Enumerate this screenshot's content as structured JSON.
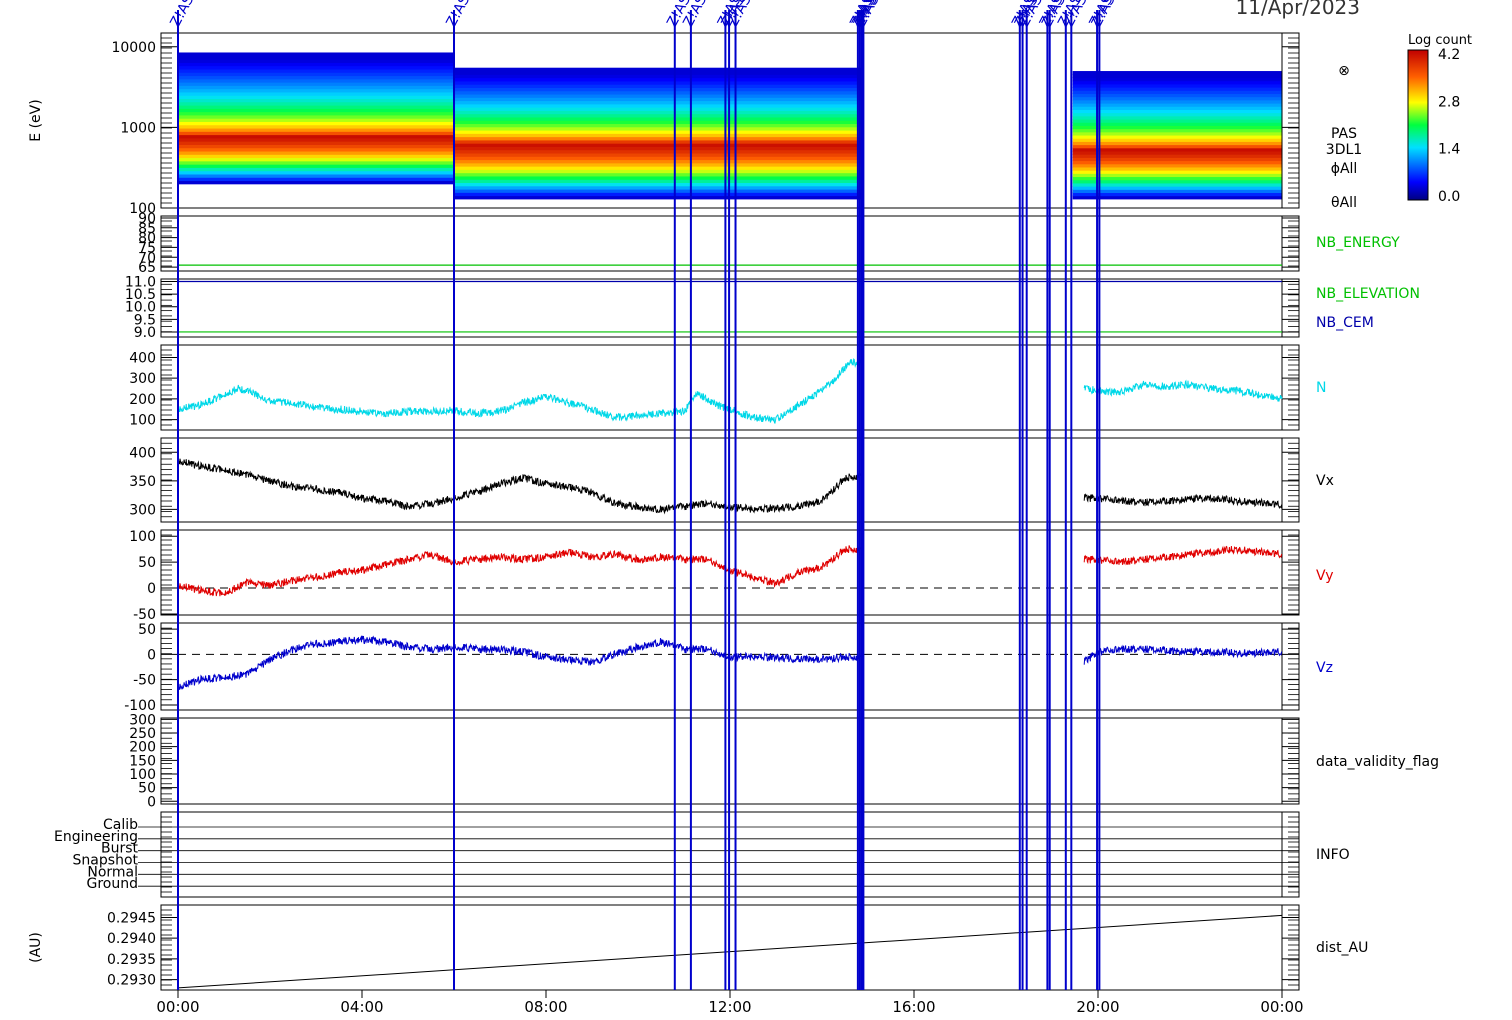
{
  "date_label": "11/Apr/2023",
  "colors": {
    "event": "#0000cc",
    "N": "#00d8e8",
    "Vx": "#000000",
    "Vy": "#e00000",
    "Vz": "#0000cc",
    "NB_ENERGY": "#00c000",
    "NB_ELEVATION": "#00c000",
    "NB_CEM": "#0000aa"
  },
  "chart_data": {
    "type": "line",
    "x_ticks": [
      "00:00",
      "04:00",
      "08:00",
      "12:00",
      "16:00",
      "20:00",
      "00:00"
    ],
    "x_range_hours": [
      0,
      24
    ],
    "event_marker_label": "Z!AS",
    "event_markers_hours": [
      0.0,
      6.0,
      10.8,
      11.15,
      11.9,
      11.98,
      12.12,
      14.78,
      14.82,
      14.86,
      14.9,
      18.3,
      18.36,
      18.45,
      18.9,
      18.95,
      19.3,
      19.42,
      19.98,
      20.03
    ],
    "data_gaps_hours": [
      [
        14.9,
        19.45
      ]
    ],
    "panels": [
      {
        "id": "spectrogram",
        "type": "heatmap",
        "ylabel": "E (eV)",
        "y_scale": "log",
        "y_range": [
          100,
          14000
        ],
        "y_ticks": [
          "10000",
          "1000",
          "100"
        ],
        "side_labels": [
          "PAS",
          "3DL1",
          "ϕAll",
          "θAll"
        ],
        "colorbar": {
          "title": "Log count",
          "ticks": [
            "4.2",
            "2.8",
            "1.4",
            "0.0"
          ],
          "range": [
            0,
            4.2
          ]
        },
        "segments": [
          {
            "t": [
              0.0,
              6.0
            ],
            "e_range": [
              200,
              8500
            ],
            "peak_energy": 800
          },
          {
            "t": [
              6.0,
              14.9
            ],
            "e_range": [
              130,
              5500
            ],
            "peak_energy": 650
          },
          {
            "t": [
              19.45,
              24.0
            ],
            "e_range": [
              130,
              5000
            ],
            "peak_energy": 550
          }
        ]
      },
      {
        "id": "nb-energy",
        "ylabel": "",
        "y_range": [
          63,
          91
        ],
        "y_ticks": [
          "90",
          "85",
          "80",
          "75",
          "70",
          "65"
        ],
        "series": [
          {
            "name": "NB_ENERGY",
            "values": [
              66
            ]
          }
        ]
      },
      {
        "id": "nb-elevation-cem",
        "ylabel": "",
        "y_range": [
          8.8,
          11.1
        ],
        "y_ticks": [
          "11.0",
          "10.5",
          "10.0",
          "9.5",
          "9.0"
        ],
        "series": [
          {
            "name": "NB_ELEVATION",
            "values": [
              9.0
            ]
          },
          {
            "name": "NB_CEM",
            "values": [
              11.0
            ]
          }
        ]
      },
      {
        "id": "density",
        "ylabel": "",
        "y_range": [
          50,
          460
        ],
        "y_ticks": [
          "400",
          "300",
          "200",
          "100"
        ],
        "series": [
          {
            "name": "N",
            "t": [
              0.0,
              0.5,
              1.0,
              1.3,
              1.6,
              2.0,
              2.5,
              3.0,
              3.5,
              4.0,
              4.5,
              5.0,
              5.5,
              6.0,
              6.5,
              7.0,
              7.5,
              8.0,
              8.5,
              9.0,
              9.5,
              10.0,
              10.5,
              11.0,
              11.3,
              11.6,
              12.0,
              12.5,
              13.0,
              13.5,
              14.0,
              14.3,
              14.6,
              14.9,
              19.45,
              19.7,
              20.0,
              20.5,
              21.0,
              21.5,
              22.0,
              22.5,
              23.0,
              23.5,
              24.0
            ],
            "values": [
              150,
              170,
              220,
              250,
              230,
              190,
              180,
              160,
              150,
              140,
              130,
              140,
              140,
              145,
              130,
              140,
              180,
              210,
              180,
              150,
              110,
              120,
              130,
              140,
              230,
              180,
              150,
              110,
              100,
              170,
              240,
              300,
              380,
              370,
              null,
              250,
              240,
              230,
              270,
              260,
              270,
              250,
              240,
              220,
              200
            ]
          }
        ]
      },
      {
        "id": "vx",
        "ylabel": "",
        "y_range": [
          278,
          425
        ],
        "y_ticks": [
          "400",
          "350",
          "300"
        ],
        "series": [
          {
            "name": "Vx",
            "t": [
              0.0,
              0.5,
              1.0,
              1.5,
              2.0,
              2.5,
              3.0,
              3.5,
              4.0,
              4.5,
              5.0,
              5.5,
              6.0,
              6.5,
              7.0,
              7.5,
              8.0,
              8.5,
              9.0,
              9.5,
              10.0,
              10.5,
              11.0,
              11.5,
              12.0,
              12.5,
              13.0,
              13.5,
              14.0,
              14.5,
              14.9,
              19.45,
              19.7,
              20.0,
              20.5,
              21.0,
              21.5,
              22.0,
              22.5,
              23.0,
              23.5,
              24.0
            ],
            "values": [
              385,
              375,
              370,
              360,
              350,
              340,
              335,
              330,
              320,
              315,
              305,
              310,
              320,
              330,
              345,
              355,
              345,
              340,
              330,
              310,
              305,
              300,
              305,
              310,
              305,
              300,
              303,
              305,
              315,
              355,
              360,
              null,
              320,
              320,
              315,
              312,
              315,
              318,
              320,
              315,
              312,
              308
            ]
          }
        ]
      },
      {
        "id": "vy",
        "ylabel": "",
        "y_range": [
          -52,
          112
        ],
        "y_ticks": [
          "100",
          "50",
          "0",
          "-50"
        ],
        "zero_line": 0,
        "series": [
          {
            "name": "Vy",
            "t": [
              0.0,
              0.5,
              1.0,
              1.5,
              2.0,
              2.5,
              3.0,
              3.5,
              4.0,
              4.5,
              5.0,
              5.5,
              6.0,
              6.5,
              7.0,
              7.5,
              8.0,
              8.5,
              9.0,
              9.5,
              10.0,
              10.5,
              11.0,
              11.5,
              12.0,
              12.5,
              13.0,
              13.5,
              14.0,
              14.5,
              14.9,
              19.45,
              19.7,
              20.0,
              20.5,
              21.0,
              21.5,
              22.0,
              22.5,
              23.0,
              23.5,
              24.0
            ],
            "values": [
              5,
              -5,
              -10,
              10,
              5,
              15,
              20,
              30,
              35,
              45,
              55,
              65,
              50,
              55,
              60,
              55,
              60,
              70,
              60,
              65,
              55,
              60,
              55,
              55,
              35,
              20,
              10,
              30,
              40,
              75,
              75,
              null,
              55,
              55,
              50,
              55,
              60,
              65,
              70,
              75,
              70,
              65
            ]
          }
        ]
      },
      {
        "id": "vz",
        "ylabel": "",
        "y_range": [
          -110,
          62
        ],
        "y_ticks": [
          "50",
          "0",
          "-50",
          "-100"
        ],
        "zero_line": 0,
        "series": [
          {
            "name": "Vz",
            "t": [
              0.0,
              0.5,
              1.0,
              1.5,
              2.0,
              2.5,
              3.0,
              3.5,
              4.0,
              4.5,
              5.0,
              5.5,
              6.0,
              6.5,
              7.0,
              7.5,
              8.0,
              8.5,
              9.0,
              9.5,
              10.0,
              10.5,
              11.0,
              11.5,
              12.0,
              12.5,
              13.0,
              13.5,
              14.0,
              14.5,
              14.9,
              19.45,
              19.7,
              20.0,
              20.5,
              21.0,
              21.5,
              22.0,
              22.5,
              23.0,
              23.5,
              24.0
            ],
            "values": [
              -65,
              -50,
              -45,
              -40,
              -10,
              10,
              20,
              25,
              30,
              25,
              15,
              10,
              15,
              10,
              10,
              5,
              -5,
              -10,
              -15,
              0,
              15,
              25,
              10,
              10,
              -5,
              -5,
              -5,
              -10,
              -10,
              -5,
              -5,
              null,
              -15,
              5,
              10,
              10,
              8,
              5,
              5,
              3,
              3,
              5
            ]
          }
        ]
      },
      {
        "id": "validity",
        "ylabel": "",
        "y_range": [
          -10,
          305
        ],
        "y_ticks": [
          "300",
          "250",
          "200",
          "150",
          "100",
          "50",
          "0"
        ],
        "series": [
          {
            "name": "data_validity_flag",
            "values": []
          }
        ]
      },
      {
        "id": "info",
        "ylabel": "",
        "categories": [
          "Calib",
          "Engineering",
          "Burst",
          "Snapshot",
          "Normal",
          "Ground"
        ],
        "series": [
          {
            "name": "INFO",
            "values": []
          }
        ]
      },
      {
        "id": "distance",
        "ylabel": "(AU)",
        "y_range": [
          0.29275,
          0.2948
        ],
        "y_ticks": [
          "0.2945",
          "0.2940",
          "0.2935",
          "0.2930"
        ],
        "series": [
          {
            "name": "dist_AU",
            "t": [
              0,
              24
            ],
            "values": [
              0.2928,
              0.29455
            ]
          }
        ]
      }
    ]
  }
}
